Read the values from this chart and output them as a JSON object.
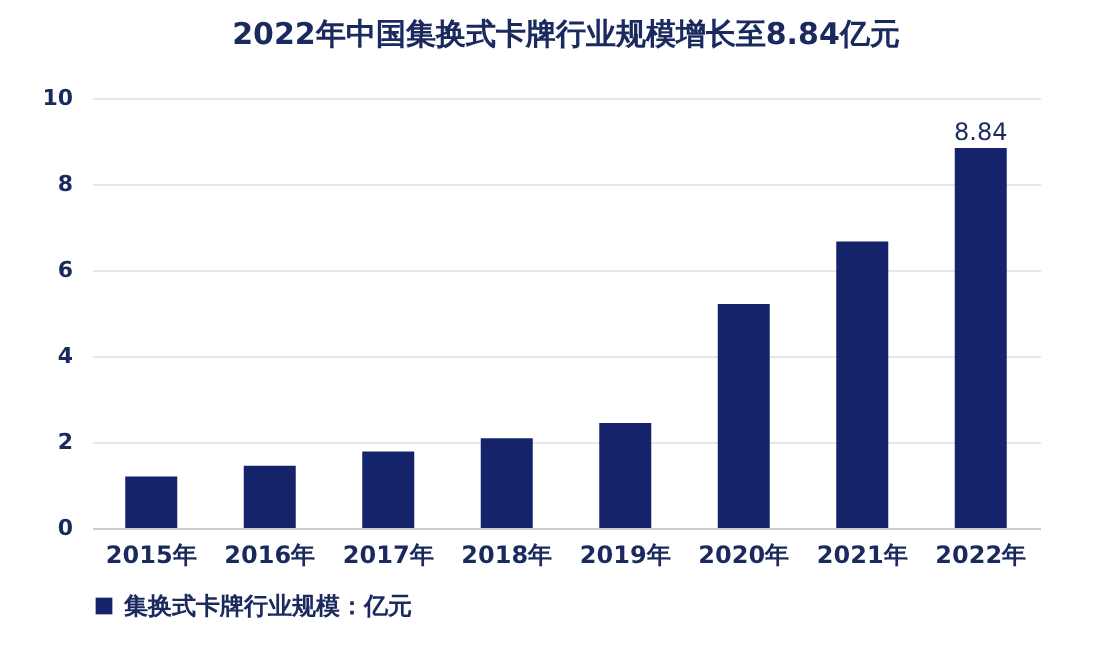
{
  "chart_data": {
    "type": "bar",
    "title": "2022年中国集换式卡牌行业规模增长至8.84亿元",
    "categories": [
      "2015年",
      "2016年",
      "2017年",
      "2018年",
      "2019年",
      "2020年",
      "2021年",
      "2022年"
    ],
    "series": [
      {
        "name": "集换式卡牌行业规模：亿元",
        "color": "#14236a",
        "values": [
          1.2,
          1.45,
          1.78,
          2.09,
          2.44,
          5.21,
          6.66,
          8.84
        ],
        "value_labels": [
          null,
          null,
          null,
          null,
          null,
          null,
          null,
          "8.84"
        ]
      }
    ],
    "ylim": [
      0,
      10
    ],
    "yticks": [
      0,
      2,
      4,
      6,
      8,
      10
    ],
    "grid": "y",
    "legend": "bottom"
  }
}
